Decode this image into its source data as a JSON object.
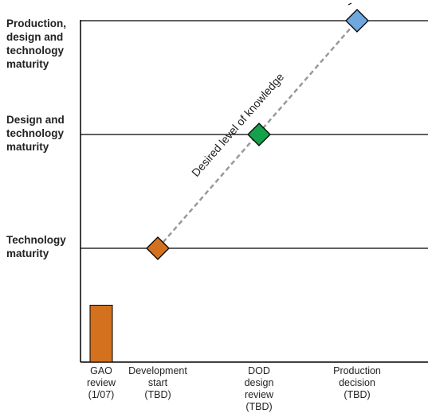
{
  "chart_data": {
    "type": "bar",
    "title": "",
    "y_levels": [
      {
        "label": "Technology\nmaturity",
        "level": 1
      },
      {
        "label": "Design and\ntechnology\nmaturity",
        "level": 2
      },
      {
        "label": "Production,\ndesign and\ntechnology\nmaturity",
        "level": 3
      }
    ],
    "categories": [
      "GAO\nreview\n(1/07)",
      "Development\nstart\n(TBD)",
      "DOD\ndesign\nreview\n(TBD)",
      "Production\ndecision\n(TBD)"
    ],
    "bar": {
      "category_index": 0,
      "value": 0.5,
      "color": "#D4711E"
    },
    "milestones": [
      {
        "category_index": 1,
        "level": 1,
        "color": "#D4711E"
      },
      {
        "category_index": 2,
        "level": 2,
        "color": "#15A04A"
      },
      {
        "category_index": 3,
        "level": 3,
        "color": "#6FA8DC"
      }
    ],
    "trend_label": "Desired level of knowledge",
    "ylim": [
      0,
      3
    ],
    "grid": false
  }
}
